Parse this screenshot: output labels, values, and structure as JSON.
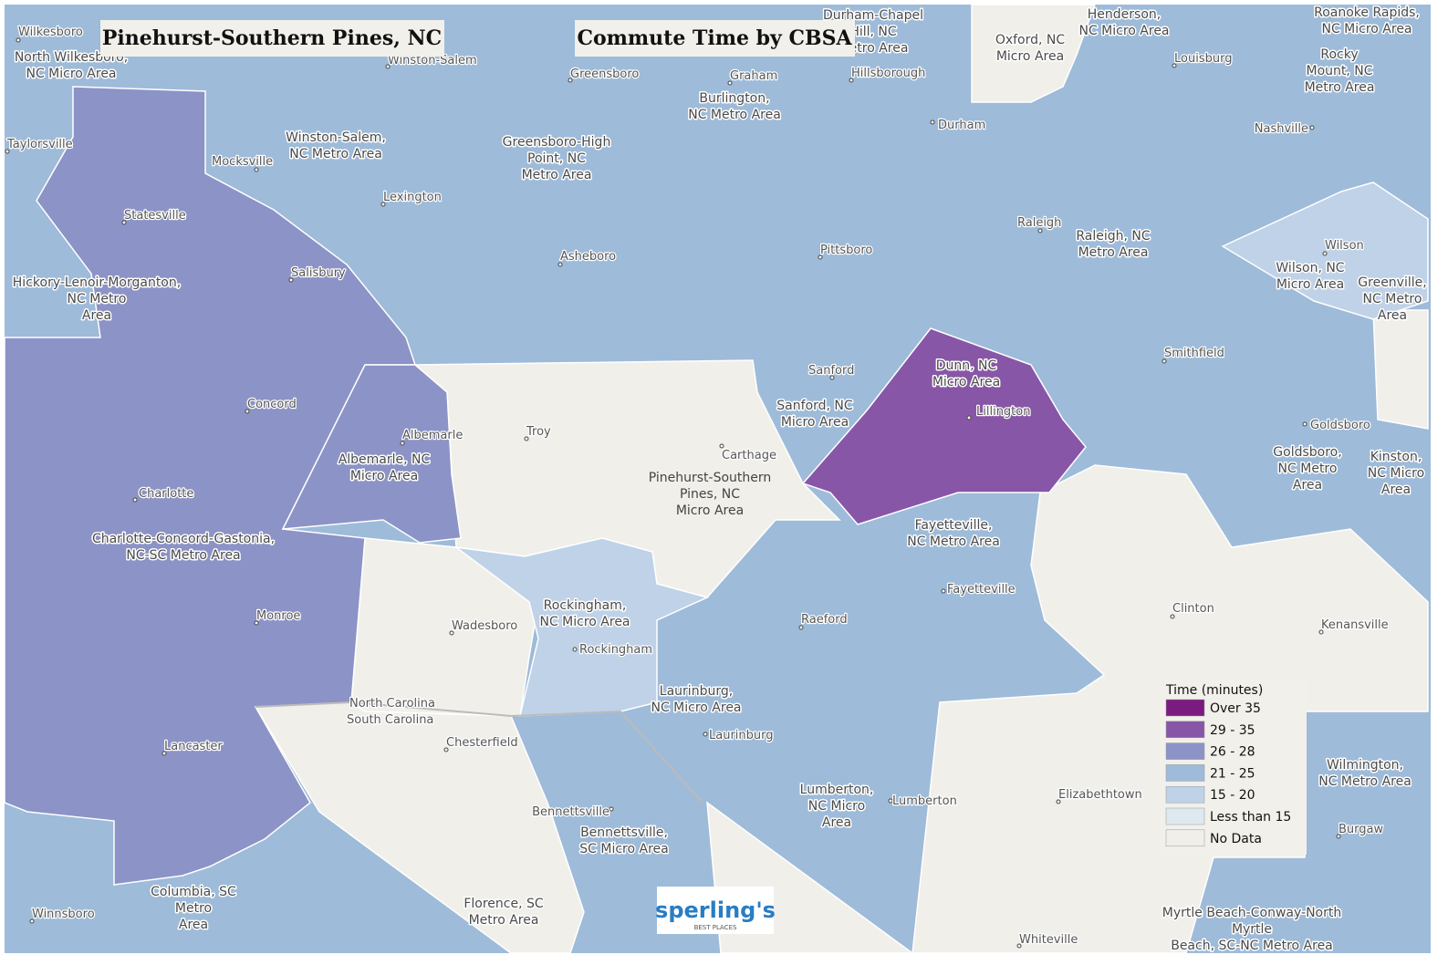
{
  "header": {
    "title": "Pinehurst-Southern Pines, NC",
    "subtitle": "Commute Time by CBSA"
  },
  "regions": [
    [
      "North Wilkesboro,",
      "NC Micro Area"
    ],
    [
      "Winston-Salem,",
      "NC Metro Area"
    ],
    [
      "Greensboro-High",
      "Point, NC",
      "Metro Area"
    ],
    [
      "Burlington,",
      "NC Metro Area"
    ],
    [
      "Durham-Chapel",
      "Hill, NC",
      "Metro Area"
    ],
    [
      "Oxford, NC",
      "Micro Area"
    ],
    [
      "Henderson,",
      "NC Micro Area"
    ],
    [
      "Roanoke Rapids,",
      "NC Micro Area"
    ],
    [
      "Rocky",
      "Mount, NC",
      "Metro Area"
    ],
    [
      "Raleigh, NC",
      "Metro Area"
    ],
    [
      "Wilson, NC",
      "Micro Area"
    ],
    [
      "Greenville,",
      "NC Metro",
      "Area"
    ],
    [
      "Hickory-Lenoir-Morganton,",
      "NC Metro",
      "Area"
    ],
    [
      "Albemarle, NC",
      "Micro Area"
    ],
    [
      "Charlotte-Concord-Gastonia,",
      "NC-SC Metro Area"
    ],
    [
      "Sanford, NC",
      "Micro Area"
    ],
    [
      "Dunn, NC",
      "Micro Area"
    ],
    [
      "Pinehurst-Southern",
      "Pines, NC",
      "Micro Area"
    ],
    [
      "Fayetteville,",
      "NC Metro Area"
    ],
    [
      "Goldsboro,",
      "NC Metro",
      "Area"
    ],
    [
      "Kinston,",
      "NC Micro",
      "Area"
    ],
    [
      "Rockingham,",
      "NC Micro Area"
    ],
    [
      "Laurinburg,",
      "NC Micro Area"
    ],
    [
      "Lumberton,",
      "NC Micro",
      "Area"
    ],
    [
      "Wilmington,",
      "NC Metro Area"
    ],
    [
      "Bennettsville,",
      "SC Micro Area"
    ],
    [
      "Columbia, SC",
      "Metro",
      "Area"
    ],
    [
      "Florence, SC",
      "Metro Area"
    ],
    [
      "Myrtle Beach-Conway-North",
      "Myrtle",
      "Beach, SC-NC Metro Area"
    ]
  ],
  "cities": [
    "Wilkesboro",
    "Winston-Salem",
    "Greensboro",
    "Graham",
    "Hillsborough",
    "Louisburg",
    "Taylorsville",
    "Mocksville",
    "Lexington",
    "Durham",
    "Nashville",
    "Statesville",
    "Raleigh",
    "Salisbury",
    "Asheboro",
    "Pittsboro",
    "Wilson",
    "Smithfield",
    "Sanford",
    "Concord",
    "Albemarle",
    "Troy",
    "Carthage",
    "Lillington",
    "Goldsboro",
    "Charlotte",
    "Fayetteville",
    "Clinton",
    "Kenansville",
    "Monroe",
    "Wadesboro",
    "Raeford",
    "Rockingham",
    "Laurinburg",
    "Lancaster",
    "Chesterfield",
    "Elizabethtown",
    "Lumberton",
    "Bennettsville",
    "Burgaw",
    "Winnsboro",
    "Whiteville"
  ],
  "states": [
    "North Carolina",
    "South Carolina"
  ],
  "legend": {
    "title": "Time (minutes)",
    "items": [
      {
        "label": "Over 35",
        "color": "#7b1b7f"
      },
      {
        "label": "29 - 35",
        "color": "#8856a7"
      },
      {
        "label": "26 - 28",
        "color": "#8c93c6"
      },
      {
        "label": "21 - 25",
        "color": "#9ebbd9"
      },
      {
        "label": "15 - 20",
        "color": "#bfd2e7"
      },
      {
        "label": "Less than 15",
        "color": "#dde9ef"
      },
      {
        "label": "No Data",
        "color": "#f1efea"
      }
    ]
  },
  "logo": {
    "name": "sperling's",
    "tagline": "BEST PLACES"
  }
}
